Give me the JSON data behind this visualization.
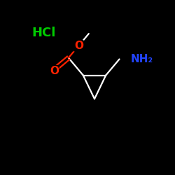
{
  "background_color": "#000000",
  "hcl_label": "HCl",
  "hcl_color": "#00cc00",
  "o_color": "#ff2200",
  "n_color": "#2244ff",
  "bond_color": "#ffffff",
  "nh2_label": "NH₂",
  "o_label": "O",
  "figsize": [
    2.5,
    2.5
  ],
  "dpi": 100,
  "lw": 1.6
}
